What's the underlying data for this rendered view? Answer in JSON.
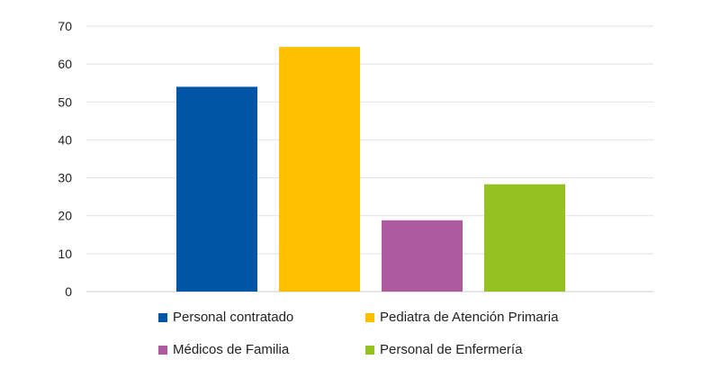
{
  "chart_data": {
    "type": "bar",
    "title": "",
    "xlabel": "",
    "ylabel": "",
    "ylim": [
      0,
      70
    ],
    "yticks": [
      0,
      10,
      20,
      30,
      40,
      50,
      60,
      70
    ],
    "grid": true,
    "legend_position": "bottom",
    "series": [
      {
        "name": "Personal contratado",
        "value": 54,
        "color": "#0055a5"
      },
      {
        "name": "Pediatra de Atención Primaria",
        "value": 64.5,
        "color": "#ffc000"
      },
      {
        "name": "Médicos de Familia",
        "value": 18.8,
        "color": "#ae5aa1"
      },
      {
        "name": "Personal de Enfermería",
        "value": 28.3,
        "color": "#95c123"
      }
    ]
  },
  "legend": {
    "items": [
      {
        "label": "Personal contratado",
        "color": "#0055a5"
      },
      {
        "label": "Pediatra de Atención Primaria",
        "color": "#ffc000"
      },
      {
        "label": "Médicos de Familia",
        "color": "#ae5aa1"
      },
      {
        "label": "Personal de Enfermería",
        "color": "#95c123"
      }
    ]
  }
}
